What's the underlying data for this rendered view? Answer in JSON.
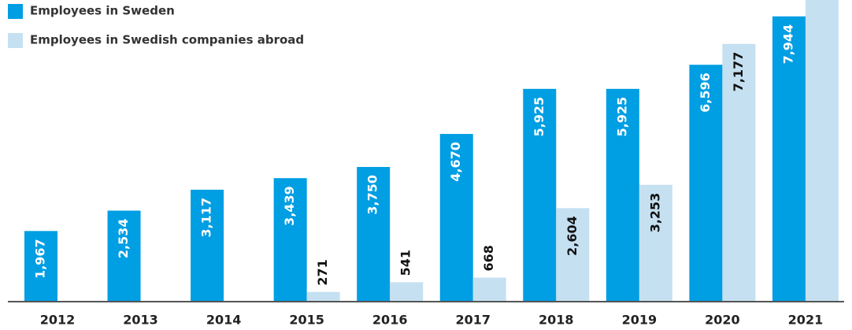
{
  "chart_data": {
    "type": "bar",
    "categories": [
      "2012",
      "2013",
      "2014",
      "2015",
      "2016",
      "2017",
      "2018",
      "2019",
      "2020",
      "2021"
    ],
    "series": [
      {
        "name": "Employees in Sweden",
        "color": "#009ee3",
        "values": [
          1967,
          2534,
          3117,
          3439,
          3750,
          4670,
          5925,
          5925,
          6596,
          7944
        ],
        "value_labels": [
          "1,967",
          "2,534",
          "3,117",
          "3,439",
          "3,750",
          "4,670",
          "5,925",
          "5,925",
          "6,596",
          "7,944"
        ]
      },
      {
        "name": "Employees in Swedish companies abroad",
        "color": "#c5e0f1",
        "values": [
          null,
          null,
          null,
          271,
          541,
          668,
          2604,
          3253,
          7177,
          8700
        ],
        "value_labels": [
          null,
          null,
          null,
          "271",
          "541",
          "668",
          "2,604",
          "3,253",
          "7,177",
          null
        ]
      }
    ],
    "ylim": [
      0,
      8400
    ],
    "legend": "upper left"
  }
}
